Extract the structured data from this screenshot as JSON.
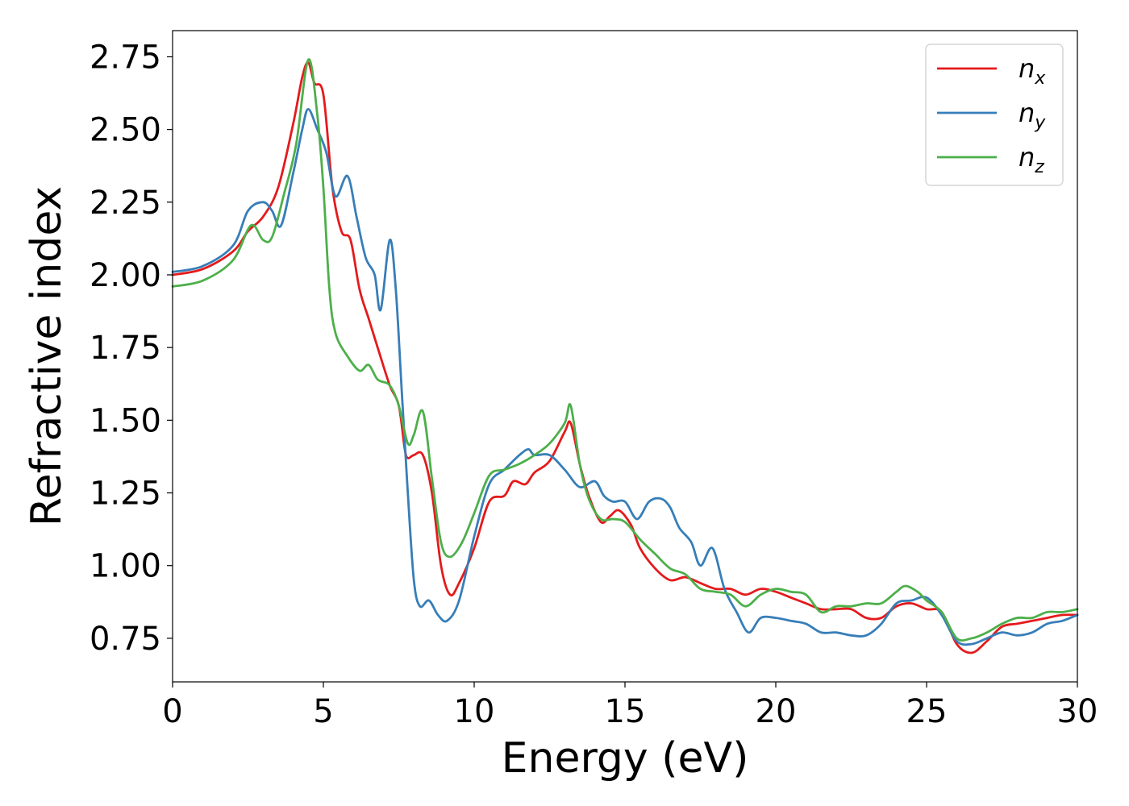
{
  "chart_data": {
    "type": "line",
    "xlabel": "Energy (eV)",
    "ylabel": "Refractive index",
    "xlim": [
      0,
      30
    ],
    "ylim": [
      0.6,
      2.84
    ],
    "xticks": [
      0,
      5,
      10,
      15,
      20,
      25,
      30
    ],
    "xtick_labels": [
      "0",
      "5",
      "10",
      "15",
      "20",
      "25",
      "30"
    ],
    "yticks": [
      0.75,
      1.0,
      1.25,
      1.5,
      1.75,
      2.0,
      2.25,
      2.5,
      2.75
    ],
    "ytick_labels": [
      "0.75",
      "1.00",
      "1.25",
      "1.50",
      "1.75",
      "2.00",
      "2.25",
      "2.50",
      "2.75"
    ],
    "grid": false,
    "legend_position": "top-right",
    "series": [
      {
        "name": "n",
        "subscript": "x",
        "color": "#e41a1c",
        "points": [
          [
            0,
            2.0
          ],
          [
            1,
            2.02
          ],
          [
            2,
            2.08
          ],
          [
            2.5,
            2.15
          ],
          [
            3,
            2.2
          ],
          [
            3.5,
            2.3
          ],
          [
            4,
            2.52
          ],
          [
            4.3,
            2.68
          ],
          [
            4.5,
            2.73
          ],
          [
            4.7,
            2.66
          ],
          [
            5,
            2.62
          ],
          [
            5.3,
            2.3
          ],
          [
            5.6,
            2.15
          ],
          [
            5.9,
            2.12
          ],
          [
            6.2,
            1.95
          ],
          [
            6.5,
            1.85
          ],
          [
            6.8,
            1.75
          ],
          [
            7.2,
            1.62
          ],
          [
            7.5,
            1.55
          ],
          [
            7.7,
            1.4
          ],
          [
            7.8,
            1.37
          ],
          [
            8,
            1.38
          ],
          [
            8.3,
            1.38
          ],
          [
            8.6,
            1.25
          ],
          [
            8.9,
            1.0
          ],
          [
            9.2,
            0.9
          ],
          [
            9.5,
            0.94
          ],
          [
            10,
            1.06
          ],
          [
            10.5,
            1.22
          ],
          [
            11,
            1.24
          ],
          [
            11.3,
            1.29
          ],
          [
            11.7,
            1.28
          ],
          [
            12,
            1.32
          ],
          [
            12.5,
            1.36
          ],
          [
            13,
            1.46
          ],
          [
            13.2,
            1.49
          ],
          [
            13.5,
            1.35
          ],
          [
            13.8,
            1.24
          ],
          [
            14.2,
            1.15
          ],
          [
            14.5,
            1.17
          ],
          [
            14.8,
            1.19
          ],
          [
            15.2,
            1.14
          ],
          [
            15.5,
            1.06
          ],
          [
            16,
            0.99
          ],
          [
            16.5,
            0.95
          ],
          [
            17,
            0.96
          ],
          [
            17.5,
            0.94
          ],
          [
            18,
            0.92
          ],
          [
            18.5,
            0.92
          ],
          [
            19,
            0.9
          ],
          [
            19.5,
            0.92
          ],
          [
            20,
            0.91
          ],
          [
            20.5,
            0.89
          ],
          [
            21,
            0.87
          ],
          [
            21.5,
            0.85
          ],
          [
            22,
            0.85
          ],
          [
            22.5,
            0.85
          ],
          [
            23,
            0.82
          ],
          [
            23.5,
            0.82
          ],
          [
            24,
            0.86
          ],
          [
            24.5,
            0.87
          ],
          [
            25,
            0.85
          ],
          [
            25.5,
            0.84
          ],
          [
            26,
            0.73
          ],
          [
            26.5,
            0.7
          ],
          [
            27,
            0.74
          ],
          [
            27.5,
            0.79
          ],
          [
            28,
            0.8
          ],
          [
            28.5,
            0.81
          ],
          [
            29,
            0.82
          ],
          [
            29.5,
            0.83
          ],
          [
            30,
            0.83
          ]
        ]
      },
      {
        "name": "n",
        "subscript": "y",
        "color": "#377eb8",
        "points": [
          [
            0,
            2.01
          ],
          [
            1,
            2.03
          ],
          [
            2,
            2.1
          ],
          [
            2.5,
            2.22
          ],
          [
            3,
            2.25
          ],
          [
            3.3,
            2.22
          ],
          [
            3.6,
            2.17
          ],
          [
            4,
            2.35
          ],
          [
            4.3,
            2.5
          ],
          [
            4.5,
            2.57
          ],
          [
            4.8,
            2.5
          ],
          [
            5.1,
            2.42
          ],
          [
            5.4,
            2.27
          ],
          [
            5.8,
            2.34
          ],
          [
            6.1,
            2.2
          ],
          [
            6.4,
            2.06
          ],
          [
            6.7,
            2.0
          ],
          [
            6.9,
            1.88
          ],
          [
            7.2,
            2.12
          ],
          [
            7.4,
            1.95
          ],
          [
            7.6,
            1.6
          ],
          [
            7.8,
            1.25
          ],
          [
            8,
            0.95
          ],
          [
            8.2,
            0.86
          ],
          [
            8.5,
            0.88
          ],
          [
            8.8,
            0.83
          ],
          [
            9.1,
            0.81
          ],
          [
            9.5,
            0.88
          ],
          [
            10,
            1.1
          ],
          [
            10.5,
            1.28
          ],
          [
            11,
            1.33
          ],
          [
            11.5,
            1.38
          ],
          [
            11.8,
            1.4
          ],
          [
            12,
            1.38
          ],
          [
            12.5,
            1.38
          ],
          [
            13,
            1.33
          ],
          [
            13.5,
            1.27
          ],
          [
            14,
            1.29
          ],
          [
            14.3,
            1.24
          ],
          [
            14.6,
            1.22
          ],
          [
            15,
            1.22
          ],
          [
            15.4,
            1.16
          ],
          [
            15.8,
            1.22
          ],
          [
            16.2,
            1.23
          ],
          [
            16.5,
            1.2
          ],
          [
            16.8,
            1.13
          ],
          [
            17.2,
            1.08
          ],
          [
            17.5,
            1.0
          ],
          [
            17.9,
            1.06
          ],
          [
            18.3,
            0.92
          ],
          [
            18.7,
            0.84
          ],
          [
            19.1,
            0.77
          ],
          [
            19.5,
            0.82
          ],
          [
            20,
            0.82
          ],
          [
            20.5,
            0.81
          ],
          [
            21,
            0.8
          ],
          [
            21.5,
            0.77
          ],
          [
            22,
            0.77
          ],
          [
            22.5,
            0.76
          ],
          [
            23,
            0.76
          ],
          [
            23.5,
            0.8
          ],
          [
            24,
            0.87
          ],
          [
            24.5,
            0.88
          ],
          [
            25,
            0.89
          ],
          [
            25.5,
            0.83
          ],
          [
            26,
            0.74
          ],
          [
            26.5,
            0.73
          ],
          [
            27,
            0.75
          ],
          [
            27.5,
            0.77
          ],
          [
            28,
            0.76
          ],
          [
            28.5,
            0.77
          ],
          [
            29,
            0.8
          ],
          [
            29.5,
            0.81
          ],
          [
            30,
            0.83
          ]
        ]
      },
      {
        "name": "n",
        "subscript": "z",
        "color": "#4daf4a",
        "points": [
          [
            0,
            1.96
          ],
          [
            1,
            1.98
          ],
          [
            2,
            2.05
          ],
          [
            2.6,
            2.17
          ],
          [
            3,
            2.12
          ],
          [
            3.3,
            2.13
          ],
          [
            3.7,
            2.28
          ],
          [
            4.1,
            2.45
          ],
          [
            4.5,
            2.74
          ],
          [
            4.8,
            2.55
          ],
          [
            5,
            2.3
          ],
          [
            5.2,
            1.95
          ],
          [
            5.4,
            1.8
          ],
          [
            5.8,
            1.72
          ],
          [
            6.2,
            1.67
          ],
          [
            6.5,
            1.69
          ],
          [
            6.8,
            1.64
          ],
          [
            7.2,
            1.62
          ],
          [
            7.5,
            1.55
          ],
          [
            7.8,
            1.42
          ],
          [
            8,
            1.45
          ],
          [
            8.3,
            1.53
          ],
          [
            8.6,
            1.3
          ],
          [
            8.9,
            1.08
          ],
          [
            9.2,
            1.03
          ],
          [
            9.6,
            1.08
          ],
          [
            10,
            1.18
          ],
          [
            10.5,
            1.31
          ],
          [
            11,
            1.33
          ],
          [
            11.5,
            1.35
          ],
          [
            12,
            1.38
          ],
          [
            12.5,
            1.42
          ],
          [
            13,
            1.49
          ],
          [
            13.2,
            1.55
          ],
          [
            13.5,
            1.35
          ],
          [
            13.8,
            1.23
          ],
          [
            14.2,
            1.16
          ],
          [
            14.6,
            1.16
          ],
          [
            15,
            1.15
          ],
          [
            15.5,
            1.09
          ],
          [
            16,
            1.04
          ],
          [
            16.5,
            0.99
          ],
          [
            17,
            0.97
          ],
          [
            17.5,
            0.92
          ],
          [
            18,
            0.91
          ],
          [
            18.5,
            0.9
          ],
          [
            19,
            0.86
          ],
          [
            19.5,
            0.9
          ],
          [
            20,
            0.92
          ],
          [
            20.5,
            0.91
          ],
          [
            21,
            0.9
          ],
          [
            21.5,
            0.84
          ],
          [
            22,
            0.86
          ],
          [
            22.5,
            0.86
          ],
          [
            23,
            0.87
          ],
          [
            23.5,
            0.87
          ],
          [
            24,
            0.91
          ],
          [
            24.3,
            0.93
          ],
          [
            24.7,
            0.91
          ],
          [
            25,
            0.88
          ],
          [
            25.5,
            0.84
          ],
          [
            26,
            0.75
          ],
          [
            26.5,
            0.75
          ],
          [
            27,
            0.77
          ],
          [
            27.5,
            0.8
          ],
          [
            28,
            0.82
          ],
          [
            28.5,
            0.82
          ],
          [
            29,
            0.84
          ],
          [
            29.5,
            0.84
          ],
          [
            30,
            0.85
          ]
        ]
      }
    ]
  }
}
